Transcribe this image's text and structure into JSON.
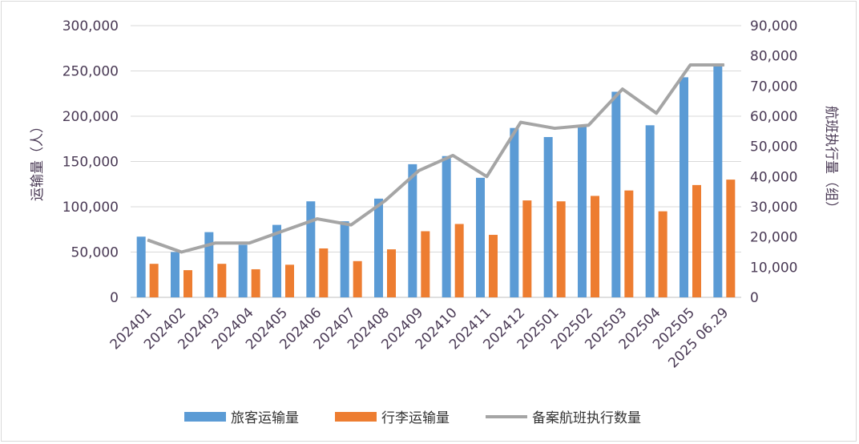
{
  "chart_data": {
    "type": "bar",
    "categories": [
      "202401",
      "202402",
      "202403",
      "202404",
      "202405",
      "202406",
      "202407",
      "202408",
      "202409",
      "202410",
      "202411",
      "202412",
      "202501",
      "202502",
      "202503",
      "202504",
      "202505",
      "2025 06.29"
    ],
    "series": [
      {
        "name": "旅客运输量",
        "type": "bar",
        "axis": "left",
        "color": "#5b9bd5",
        "values": [
          67000,
          50000,
          72000,
          58000,
          80000,
          106000,
          84000,
          109000,
          147000,
          156000,
          132000,
          187000,
          177000,
          189000,
          227000,
          190000,
          243000,
          258000
        ]
      },
      {
        "name": "行李运输量",
        "type": "bar",
        "axis": "left",
        "color": "#ed7d31",
        "values": [
          37000,
          30000,
          37000,
          31000,
          36000,
          54000,
          40000,
          53000,
          73000,
          81000,
          69000,
          107000,
          106000,
          112000,
          118000,
          95000,
          124000,
          130000
        ]
      },
      {
        "name": "备案航班执行数量",
        "type": "line",
        "axis": "right",
        "color": "#a5a5a5",
        "values": [
          19000,
          15000,
          18000,
          18000,
          22000,
          26000,
          24000,
          32000,
          42000,
          47000,
          40000,
          58000,
          56000,
          57000,
          69000,
          61000,
          77000,
          77000
        ]
      }
    ],
    "ylabel_left": "运输量（人）",
    "ylabel_right": "航班执行量（组）",
    "ylim_left": [
      0,
      300000
    ],
    "ylim_right": [
      0,
      90000
    ],
    "yticks_left": [
      "0",
      "50,000",
      "100,000",
      "150,000",
      "200,000",
      "250,000",
      "300,000"
    ],
    "yticks_right": [
      "0",
      "10,000",
      "20,000",
      "30,000",
      "40,000",
      "50,000",
      "60,000",
      "70,000",
      "80,000",
      "90,000"
    ],
    "grid": true,
    "legend_position": "bottom"
  }
}
